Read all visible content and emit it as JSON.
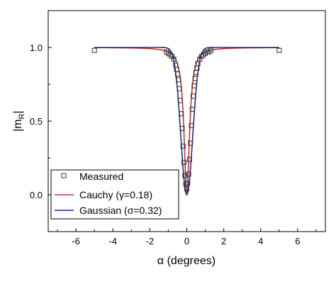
{
  "chart_data": {
    "type": "line",
    "title": "",
    "xlabel": "α (degrees)",
    "ylabel": "|m",
    "ylabel_subscript": "R",
    "ylabel_suffix": "|",
    "xlim": [
      -7.5,
      7.5
    ],
    "ylim": [
      -0.25,
      1.25
    ],
    "xticks": [
      -6,
      -4,
      -2,
      0,
      2,
      4,
      6
    ],
    "xtick_labels": [
      "-6",
      "-4",
      "-2",
      "0",
      "2",
      "4",
      "6"
    ],
    "yticks": [
      0.0,
      0.5,
      1.0
    ],
    "ytick_labels": [
      "0.0",
      "0.5",
      "1.0"
    ],
    "grid": false,
    "legend_position": "bottom-left",
    "series": [
      {
        "name": "Measured",
        "kind": "scatter",
        "marker": "open-square",
        "color": "#333333",
        "x": [
          -5.0,
          -1.1,
          -1.0,
          -0.9,
          -0.8,
          -0.7,
          -0.6,
          -0.55,
          -0.5,
          -0.45,
          -0.4,
          -0.35,
          -0.3,
          -0.25,
          -0.2,
          -0.15,
          -0.1,
          -0.05,
          0.0,
          0.05,
          0.1,
          0.15,
          0.2,
          0.25,
          0.3,
          0.35,
          0.4,
          0.45,
          0.5,
          0.55,
          0.6,
          0.7,
          0.8,
          0.9,
          1.0,
          1.1,
          1.2,
          1.3,
          5.0
        ],
        "y": [
          0.98,
          0.97,
          0.96,
          0.95,
          0.94,
          0.92,
          0.88,
          0.85,
          0.82,
          0.78,
          0.72,
          0.64,
          0.55,
          0.45,
          0.33,
          0.22,
          0.13,
          0.07,
          0.04,
          0.08,
          0.14,
          0.24,
          0.35,
          0.47,
          0.58,
          0.67,
          0.74,
          0.79,
          0.83,
          0.86,
          0.89,
          0.92,
          0.94,
          0.95,
          0.96,
          0.97,
          0.97,
          0.98,
          0.98
        ]
      },
      {
        "name": "Cauchy (γ=0.18)",
        "kind": "line",
        "color": "#c0392b",
        "model": "cauchy",
        "param": 0.18
      },
      {
        "name": "Gaussian (σ=0.32)",
        "kind": "line",
        "color": "#1f2f8f",
        "model": "gaussian",
        "param": 0.32
      }
    ]
  }
}
